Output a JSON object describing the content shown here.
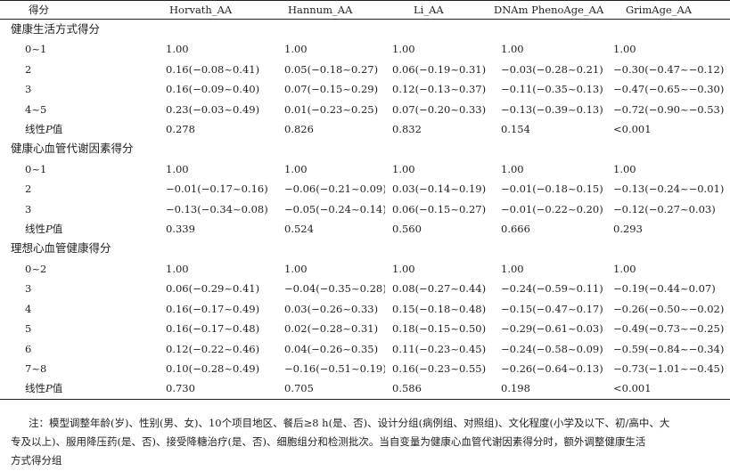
{
  "headers": [
    "得分",
    "Horvath_AA",
    "Hannum_AA",
    "Li_AA",
    "DNAm PhenoAge_AA",
    "GrimAge_AA"
  ],
  "sections": [
    {
      "title": "健康生活方式得分",
      "rows": [
        {
          "label": "0~1",
          "values": [
            "1.00",
            "1.00",
            "1.00",
            "1.00",
            "1.00"
          ]
        },
        {
          "label": "2",
          "values": [
            "0.16(−0.08~0.41)",
            "0.05(−0.18~0.27)",
            "0.06(−0.19~0.31)",
            "−0.03(−0.28~0.21)",
            "−0.30(−0.47~−0.12)"
          ]
        },
        {
          "label": "3",
          "values": [
            "0.16(−0.09~0.40)",
            "0.07(−0.15~0.29)",
            "0.12(−0.13~0.37)",
            "−0.11(−0.35~0.13)",
            "−0.47(−0.65~−0.30)"
          ]
        },
        {
          "label": "4~5",
          "values": [
            "0.23(−0.03~0.49)",
            "0.01(−0.23~0.25)",
            "0.07(−0.20~0.33)",
            "−0.13(−0.39~0.13)",
            "−0.72(−0.90~−0.53)"
          ]
        },
        {
          "label": "线性",
          "label_italic": "P",
          "label_tail": "值",
          "values": [
            "0.278",
            "0.826",
            "0.832",
            "0.154",
            "<0.001"
          ]
        }
      ]
    },
    {
      "title": "健康心血管代谢因素得分",
      "rows": [
        {
          "label": "0~1",
          "values": [
            "1.00",
            "1.00",
            "1.00",
            "1.00",
            "1.00"
          ]
        },
        {
          "label": "2",
          "values": [
            "−0.01(−0.17~0.16)",
            "−0.06(−0.21~0.09)",
            "0.03(−0.14~0.19)",
            "−0.01(−0.18~0.15)",
            "−0.13(−0.24~−0.01)"
          ]
        },
        {
          "label": "3",
          "values": [
            "−0.13(−0.34~0.08)",
            "−0.05(−0.24~0.14)",
            "0.06(−0.15~0.27)",
            "−0.01(−0.22~0.20)",
            "−0.12(−0.27~0.03)"
          ]
        },
        {
          "label": "线性",
          "label_italic": "P",
          "label_tail": "值",
          "values": [
            "0.339",
            "0.524",
            "0.560",
            "0.666",
            "0.293"
          ]
        }
      ]
    },
    {
      "title": "理想心血管健康得分",
      "rows": [
        {
          "label": "0~2",
          "values": [
            "1.00",
            "1.00",
            "1.00",
            "1.00",
            "1.00"
          ]
        },
        {
          "label": "3",
          "values": [
            "0.06(−0.29~0.41)",
            "−0.04(−0.35~0.28)",
            "0.08(−0.27~0.44)",
            "−0.24(−0.59~0.11)",
            "−0.19(−0.44~0.07)"
          ]
        },
        {
          "label": "4",
          "values": [
            "0.16(−0.17~0.49)",
            "0.03(−0.26~0.33)",
            "0.15(−0.18~0.48)",
            "−0.15(−0.47~0.17)",
            "−0.26(−0.50~−0.02)"
          ]
        },
        {
          "label": "5",
          "values": [
            "0.16(−0.17~0.48)",
            "0.02(−0.28~0.31)",
            "0.18(−0.15~0.50)",
            "−0.29(−0.61~0.03)",
            "−0.49(−0.73~−0.25)"
          ]
        },
        {
          "label": "6",
          "values": [
            "0.12(−0.22~0.46)",
            "0.04(−0.26~0.35)",
            "0.11(−0.23~0.45)",
            "−0.24(−0.58~0.09)",
            "−0.59(−0.84~−0.34)"
          ]
        },
        {
          "label": "7~8",
          "values": [
            "0.10(−0.28~0.49)",
            "−0.16(−0.51~0.19)",
            "0.16(−0.23~0.55)",
            "−0.26(−0.64~0.13)",
            "−0.73(−1.01~−0.45)"
          ]
        },
        {
          "label": "线性",
          "label_italic": "P",
          "label_tail": "值",
          "values": [
            "0.730",
            "0.705",
            "0.586",
            "0.198",
            "<0.001"
          ]
        }
      ]
    }
  ],
  "note_lines": [
    "注：模型调整年龄(岁)、性别(男、女)、10个项目地区、餐后≥8 h(是、否)、设计分组(病例组、对照组)、文化程度(小学及以下、初/高中、大",
    "专及以上)、服用降压药(是、否)、接受降糖治疗(是、否)、细胞组分和检测批次。当自变量为健康心血管代谢因素得分时，额外调整健康生活",
    "方式得分组"
  ]
}
